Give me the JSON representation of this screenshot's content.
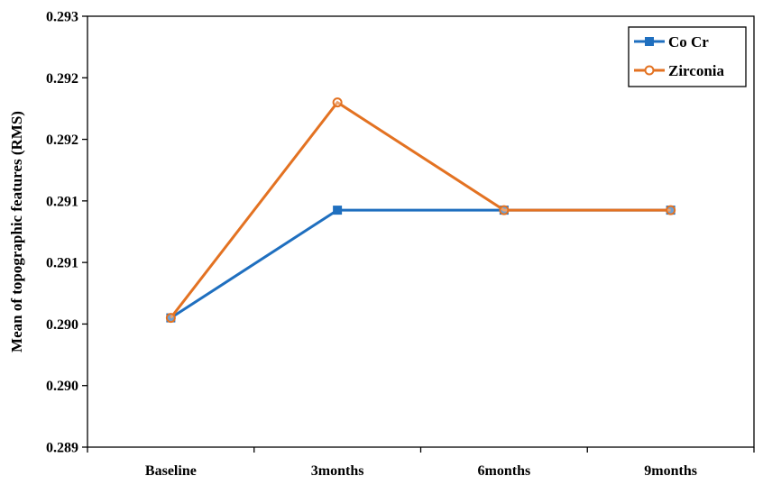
{
  "chart_data": {
    "type": "line",
    "title": "",
    "xlabel": "",
    "ylabel": "Mean of topographic features (RMS)",
    "categories": [
      "Baseline",
      "3months",
      "6months",
      "9months"
    ],
    "yticks": [
      "0.289",
      "0.290",
      "0.290",
      "0.291",
      "0.291",
      "0.292",
      "0.292",
      "0.293"
    ],
    "ylim": [
      0.289,
      0.293
    ],
    "grid": false,
    "legend_position": "top-right",
    "series": [
      {
        "name": "Co Cr",
        "values": [
          0.2902,
          0.2912,
          0.2912,
          0.2912
        ],
        "color": "#1f6fbf",
        "marker": "square"
      },
      {
        "name": "Zirconia",
        "values": [
          0.2902,
          0.2922,
          0.2912,
          0.2912
        ],
        "color": "#e37222",
        "marker": "circle"
      }
    ]
  }
}
